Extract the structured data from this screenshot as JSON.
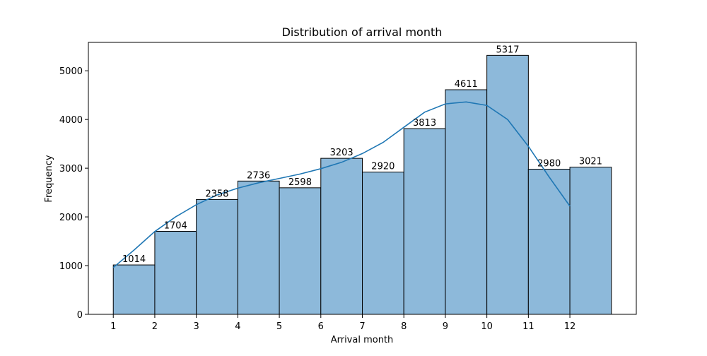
{
  "chart_data": {
    "type": "bar",
    "title": "Distribution of arrival month",
    "xlabel": "Arrival month",
    "ylabel": "Frequency",
    "categories": [
      "1",
      "2",
      "3",
      "4",
      "5",
      "6",
      "7",
      "8",
      "9",
      "10",
      "11",
      "12"
    ],
    "bin_edges": [
      1,
      2,
      3,
      4,
      5,
      6,
      7,
      8,
      9,
      10,
      11,
      12,
      13
    ],
    "values": [
      1014,
      1704,
      2358,
      2736,
      2598,
      3203,
      2920,
      3813,
      4611,
      5317,
      2980,
      3021
    ],
    "data_labels": [
      "1014",
      "1704",
      "2358",
      "2736",
      "2598",
      "3203",
      "2920",
      "3813",
      "4611",
      "5317",
      "2980",
      "3021"
    ],
    "x_ticks": [
      "1",
      "2",
      "3",
      "4",
      "5",
      "6",
      "7",
      "8",
      "9",
      "10",
      "11",
      "12"
    ],
    "y_ticks": [
      "0",
      "1000",
      "2000",
      "3000",
      "4000",
      "5000"
    ],
    "xlim": [
      0.4,
      13.6
    ],
    "ylim": [
      0,
      5583
    ],
    "grid": false,
    "kde": {
      "x": [
        1,
        1.5,
        2,
        2.5,
        3,
        3.5,
        4,
        4.5,
        5,
        5.5,
        6,
        6.5,
        7,
        7.5,
        8,
        8.5,
        9,
        9.5,
        10,
        10.5,
        11,
        11.5,
        12
      ],
      "y": [
        960,
        1320,
        1700,
        2000,
        2250,
        2450,
        2590,
        2700,
        2790,
        2880,
        2990,
        3120,
        3300,
        3530,
        3840,
        4150,
        4320,
        4360,
        4290,
        4000,
        3450,
        2820,
        2220
      ]
    },
    "colors": {
      "bar_fill": "#8db9da",
      "bar_edge": "#000000",
      "kde_line": "#1f77b4"
    }
  }
}
